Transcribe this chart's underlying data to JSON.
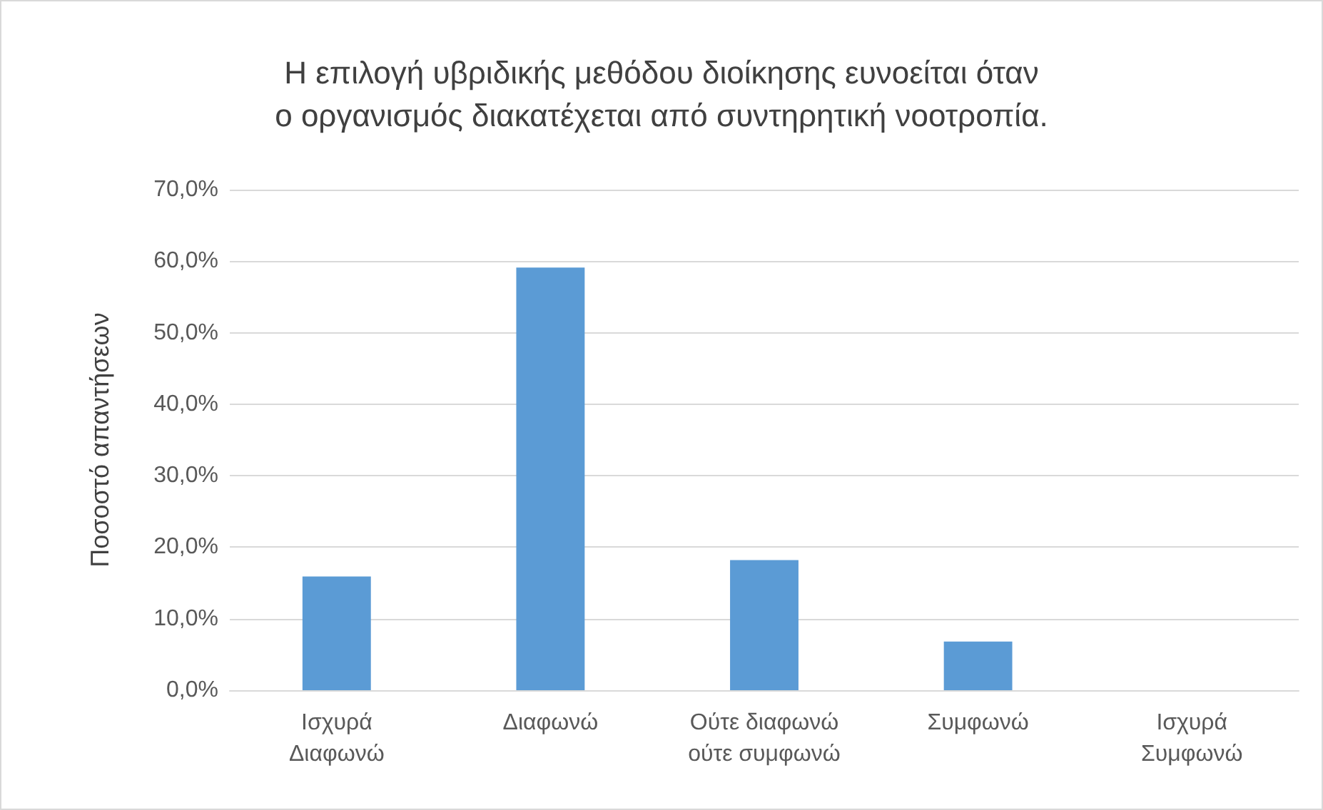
{
  "chart_data": {
    "type": "bar",
    "title": "Η επιλογή υβριδικής μεθόδου διοίκησης ευνοείται όταν ο οργανισμός διακατέχεται από συντηρητική νοοτροπία.",
    "ylabel": "Ποσοστό απαντήσεων",
    "categories": [
      "Ισχυρά Διαφωνώ",
      "Διαφωνώ",
      "Ούτε διαφωνώ ούτε συμφωνώ",
      "Συμφωνώ",
      "Ισχυρά Συμφωνώ"
    ],
    "values": [
      15.9,
      59.1,
      18.2,
      6.8,
      0
    ],
    "color": "#5b9bd5",
    "ylim": [
      0,
      70
    ],
    "yticks": [
      {
        "value": 0,
        "label": "0,0%"
      },
      {
        "value": 10,
        "label": "10,0%"
      },
      {
        "value": 20,
        "label": "20,0%"
      },
      {
        "value": 30,
        "label": "30,0%"
      },
      {
        "value": 40,
        "label": "40,0%"
      },
      {
        "value": 50,
        "label": "50,0%"
      },
      {
        "value": 60,
        "label": "60,0%"
      },
      {
        "value": 70,
        "label": "70,0%"
      }
    ],
    "grid": "y"
  }
}
